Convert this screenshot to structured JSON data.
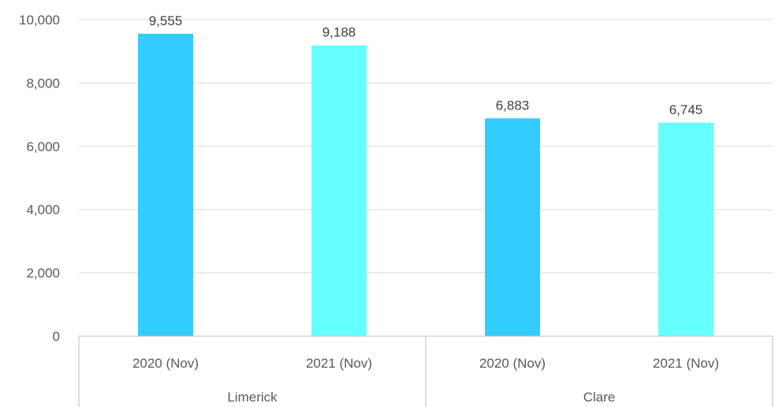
{
  "chart_data": {
    "type": "bar",
    "groups": [
      {
        "name": "Limerick",
        "bars": [
          {
            "label": "2020 (Nov)",
            "value": 9555,
            "value_label": "9,555"
          },
          {
            "label": "2021 (Nov)",
            "value": 9188,
            "value_label": "9,188"
          }
        ]
      },
      {
        "name": "Clare",
        "bars": [
          {
            "label": "2020 (Nov)",
            "value": 6883,
            "value_label": "6,883"
          },
          {
            "label": "2021 (Nov)",
            "value": 6745,
            "value_label": "6,745"
          }
        ]
      }
    ],
    "ylim": [
      0,
      10000
    ],
    "yticks": [
      0,
      2000,
      4000,
      6000,
      8000,
      10000
    ],
    "ytick_labels": [
      "0",
      "2,000",
      "4,000",
      "6,000",
      "8,000",
      "10,000"
    ],
    "grid": true,
    "colors": {
      "2020 (Nov)": "#33ccff",
      "2021 (Nov)": "#66ffff"
    }
  }
}
